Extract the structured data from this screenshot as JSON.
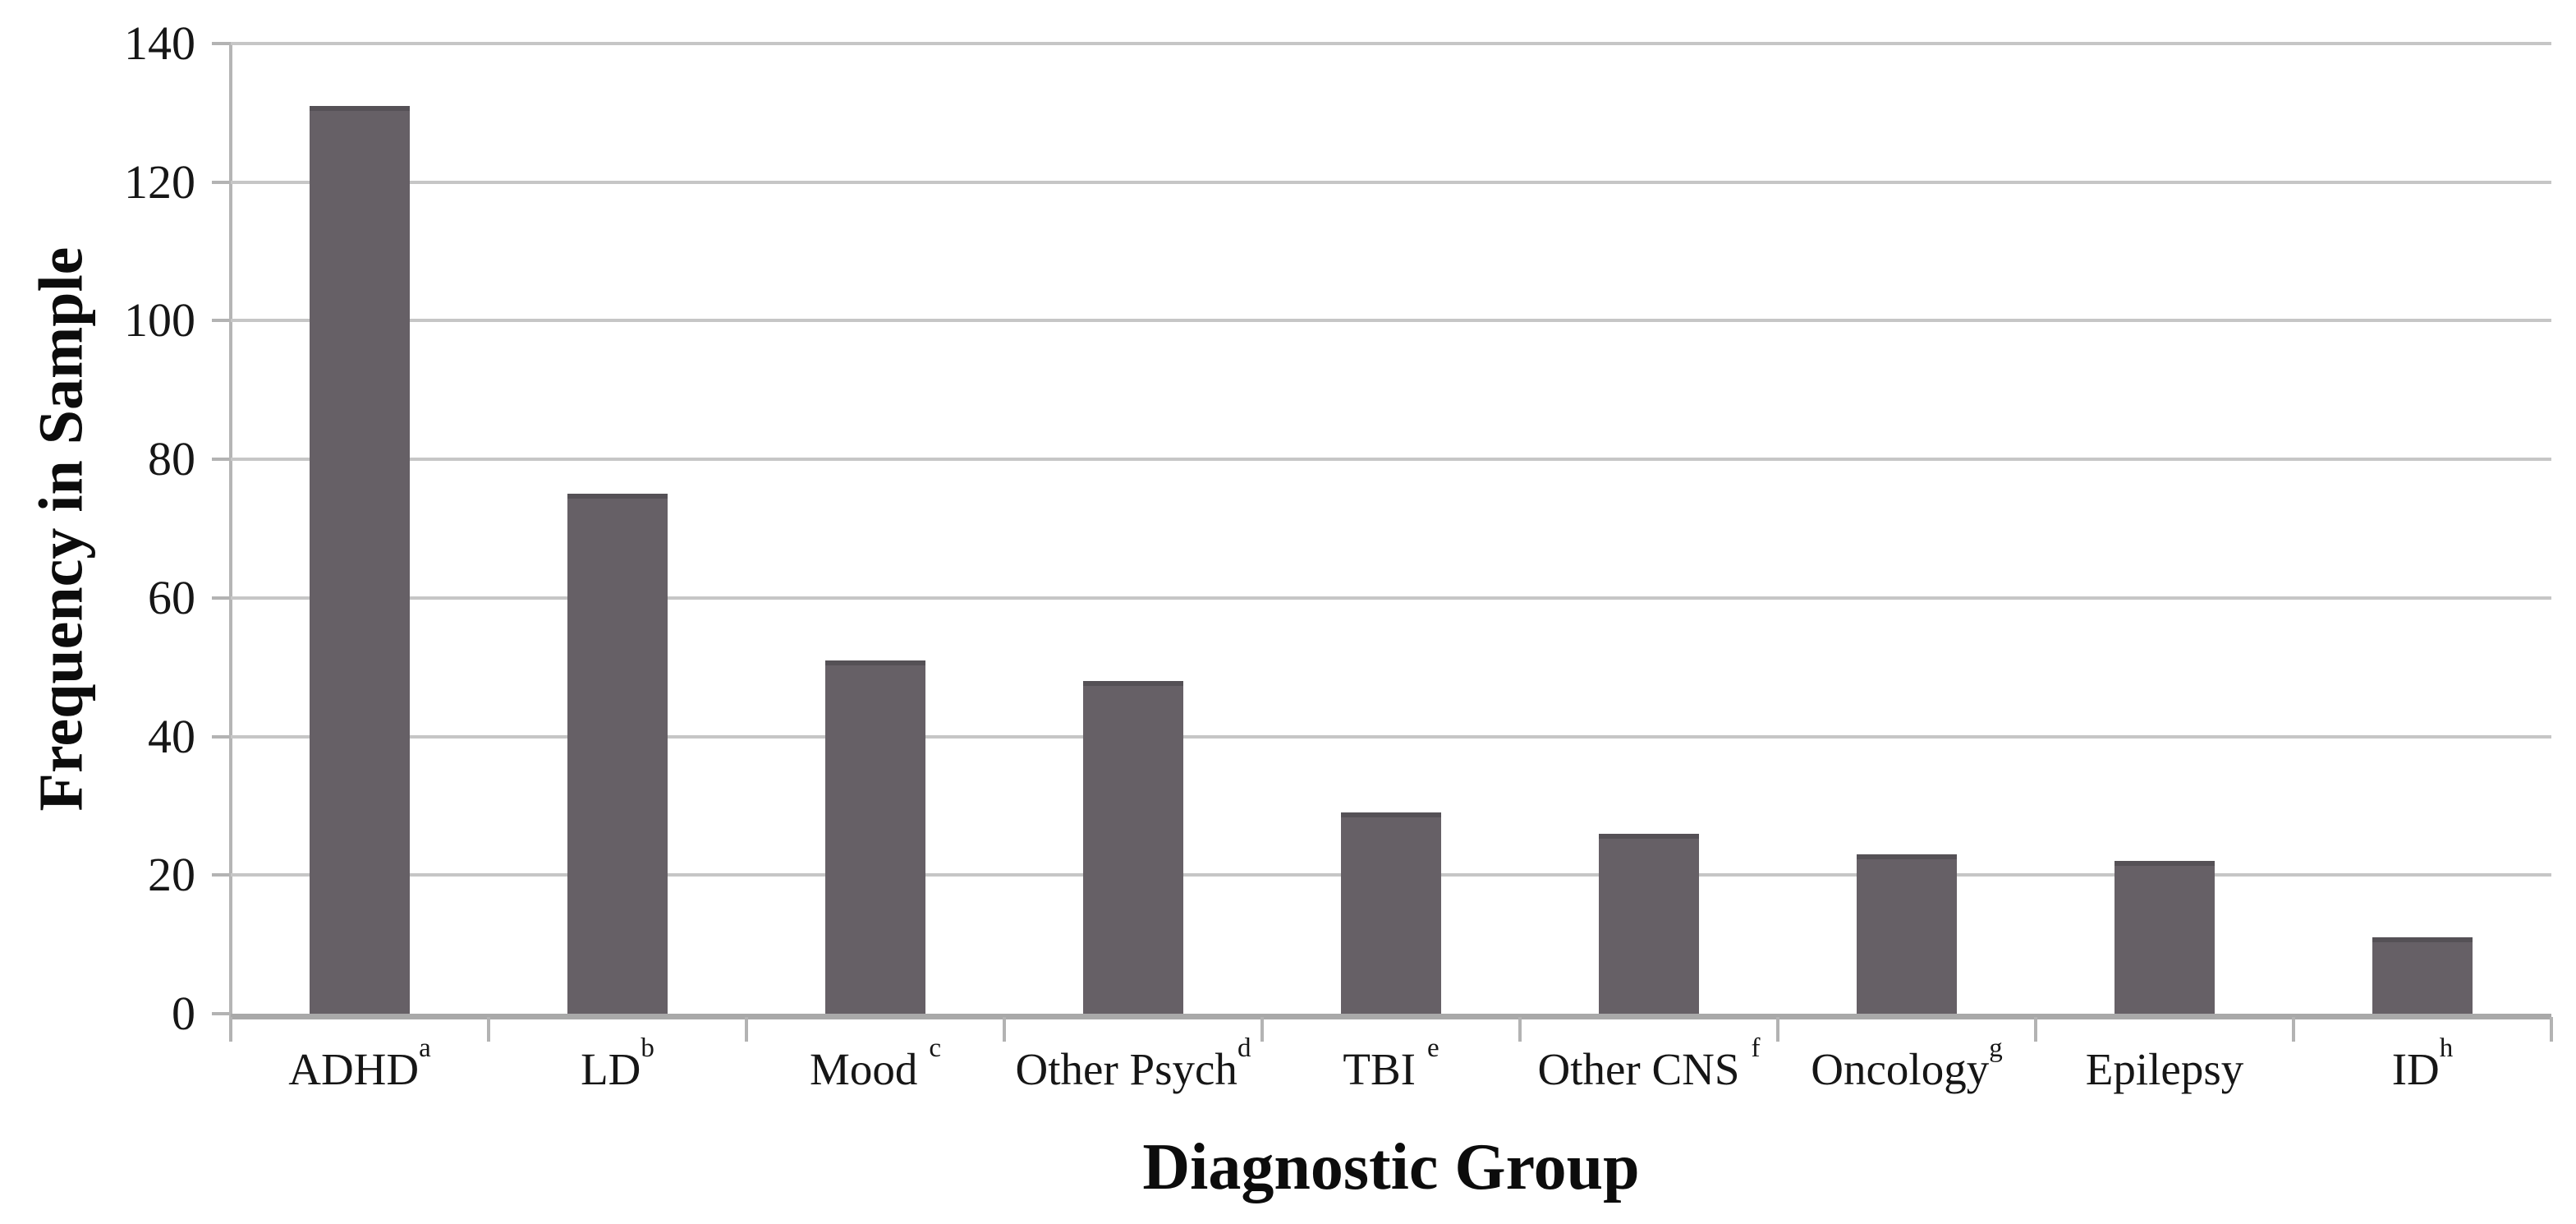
{
  "figure": {
    "y_axis_title": "Frequency in Sample",
    "x_axis_title": "Diagnostic Group"
  },
  "chart_data": {
    "type": "bar",
    "title": "",
    "xlabel": "Diagnostic Group",
    "ylabel": "Frequency in Sample",
    "categories": [
      {
        "label": "ADHD",
        "superscript": "a",
        "sup_space": false
      },
      {
        "label": "LD",
        "superscript": "b",
        "sup_space": false
      },
      {
        "label": "Mood",
        "superscript": "c",
        "sup_space": true
      },
      {
        "label": "Other Psych",
        "superscript": "d",
        "sup_space": false
      },
      {
        "label": "TBI",
        "superscript": "e",
        "sup_space": true
      },
      {
        "label": "Other CNS",
        "superscript": "f",
        "sup_space": true
      },
      {
        "label": "Oncology",
        "superscript": "g",
        "sup_space": false
      },
      {
        "label": "Epilepsy",
        "superscript": "",
        "sup_space": false
      },
      {
        "label": "ID",
        "superscript": "h",
        "sup_space": false
      }
    ],
    "values": [
      131,
      75,
      51,
      48,
      29,
      26,
      23,
      22,
      11
    ],
    "ylim": [
      0,
      140
    ],
    "yticks": [
      0,
      20,
      40,
      60,
      80,
      100,
      120,
      140
    ],
    "grid": "horizontal-only",
    "legend": "none",
    "colors": {
      "bar_fill": "#666066",
      "bar_top_edge": "#555156",
      "gridline": "#c6c6c6",
      "axis_line": "#a9a9a9",
      "tick": "#b3b3b3",
      "text": "#111111"
    }
  }
}
